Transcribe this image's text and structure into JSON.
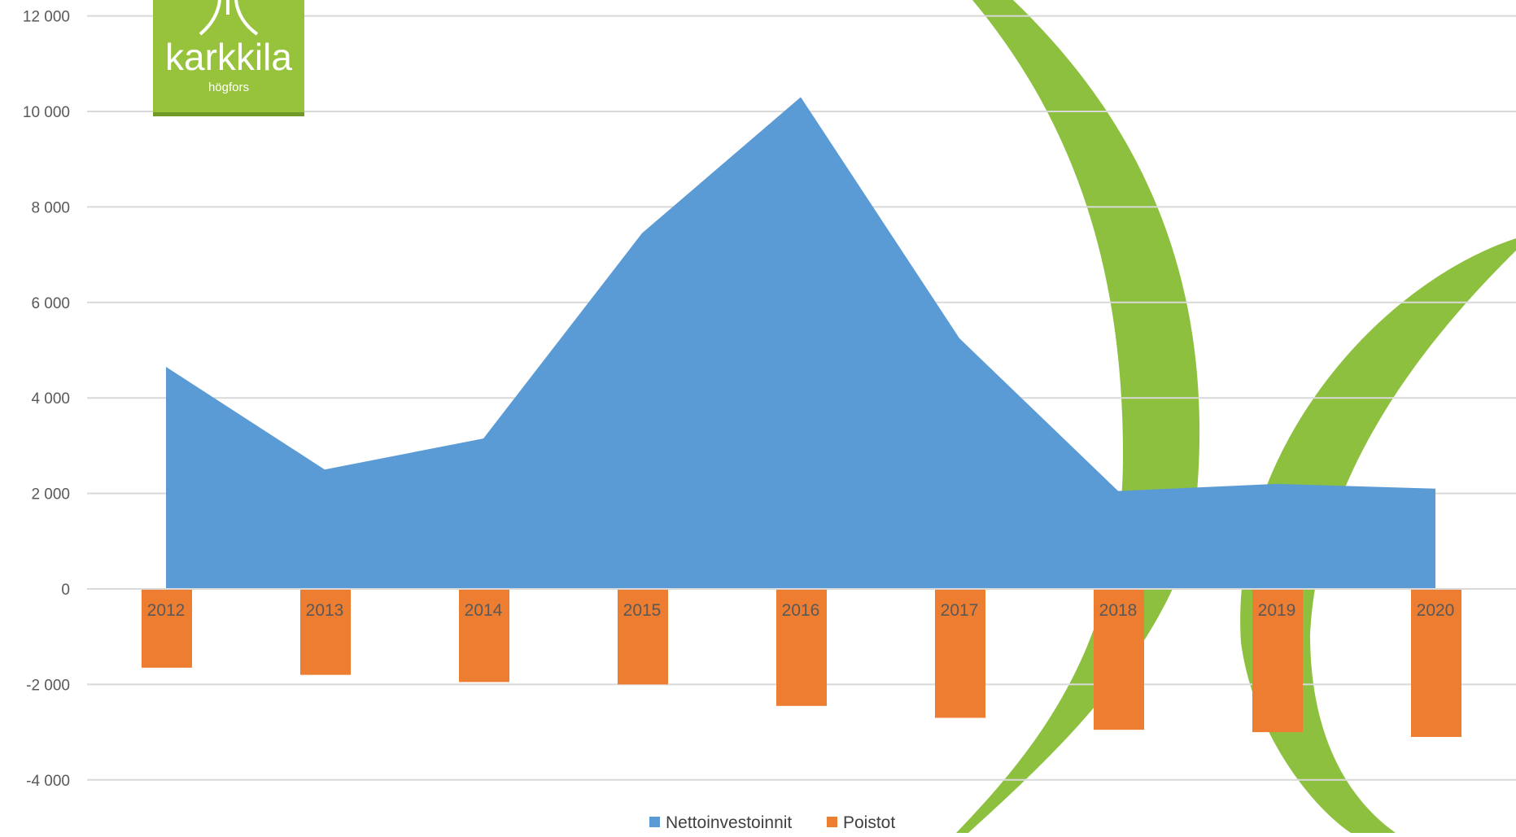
{
  "logo": {
    "name": "karkkila",
    "subname": "högfors",
    "color": "#97c33c"
  },
  "chart_data": {
    "type": "area",
    "categories": [
      "2012",
      "2013",
      "2014",
      "2015",
      "2016",
      "2017",
      "2018",
      "2019",
      "2020"
    ],
    "series": [
      {
        "name": "Nettoinvestoinnit",
        "type": "area",
        "color": "#5b9bd5",
        "values": [
          4650,
          2500,
          3150,
          7450,
          10300,
          5250,
          2050,
          2200,
          2100
        ]
      },
      {
        "name": "Poistot",
        "type": "bar",
        "color": "#ed7d31",
        "values": [
          -1650,
          -1800,
          -1950,
          -2000,
          -2450,
          -2700,
          -2950,
          -3000,
          -3100
        ]
      }
    ],
    "ylim": [
      -5000,
      12000
    ],
    "yticks": [
      12000,
      10000,
      8000,
      6000,
      4000,
      2000,
      0,
      -2000,
      -4000
    ],
    "ytick_labels": [
      "12 000",
      "10 000",
      "8 000",
      "6 000",
      "4 000",
      "2 000",
      "0",
      "-2 000",
      "-4 000"
    ],
    "grid": true,
    "legend_position": "bottom",
    "decoration_color": "#8dc03f"
  }
}
